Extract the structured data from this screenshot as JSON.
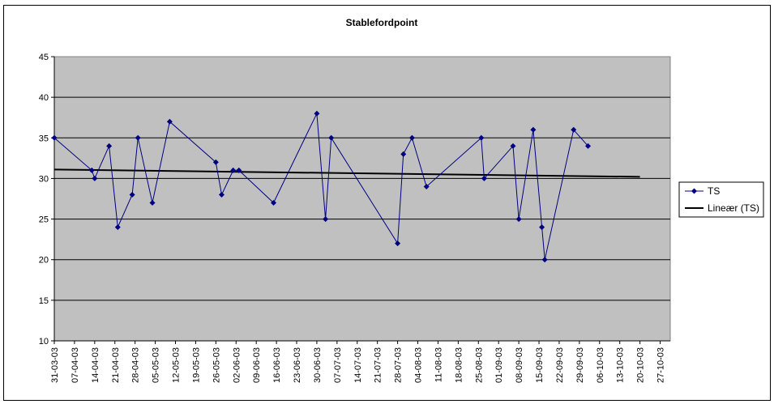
{
  "chart_data": {
    "type": "line",
    "title": "Stablefordpoint",
    "xlabel": "",
    "ylabel": "",
    "ylim": [
      10,
      45
    ],
    "yticks": [
      10,
      15,
      20,
      25,
      30,
      35,
      40,
      45
    ],
    "grid": true,
    "legend_position": "right",
    "colors": {
      "plot_background": "#C0C0C0",
      "series": "#000080",
      "trend": "#000000"
    },
    "x_tick_labels": [
      "31-03-03",
      "07-04-03",
      "14-04-03",
      "21-04-03",
      "28-04-03",
      "05-05-03",
      "12-05-03",
      "19-05-03",
      "26-05-03",
      "02-06-03",
      "09-06-03",
      "16-06-03",
      "23-06-03",
      "30-06-03",
      "07-07-03",
      "14-07-03",
      "21-07-03",
      "28-07-03",
      "04-08-03",
      "11-08-03",
      "18-08-03",
      "25-08-03",
      "01-09-03",
      "08-09-03",
      "15-09-03",
      "22-09-03",
      "29-09-03",
      "06-10-03",
      "13-10-03",
      "20-10-03",
      "27-10-03"
    ],
    "series": [
      {
        "name": "TS",
        "x": [
          "2003-03-31",
          "2003-04-13",
          "2003-04-14",
          "2003-04-19",
          "2003-04-22",
          "2003-04-27",
          "2003-04-29",
          "2003-05-04",
          "2003-05-10",
          "2003-05-26",
          "2003-05-28",
          "2003-06-01",
          "2003-06-03",
          "2003-06-15",
          "2003-06-30",
          "2003-07-03",
          "2003-07-05",
          "2003-07-28",
          "2003-07-30",
          "2003-08-02",
          "2003-08-07",
          "2003-08-26",
          "2003-08-27",
          "2003-09-06",
          "2003-09-08",
          "2003-09-13",
          "2003-09-16",
          "2003-09-17",
          "2003-09-27",
          "2003-10-02"
        ],
        "values": [
          35,
          31,
          30,
          34,
          24,
          28,
          35,
          27,
          37,
          32,
          28,
          31,
          31,
          27,
          38,
          25,
          35,
          22,
          33,
          35,
          29,
          35,
          30,
          34,
          25,
          36,
          24,
          20,
          36,
          34
        ]
      },
      {
        "name": "Lineær (TS)",
        "x": [
          "2003-03-31",
          "2003-10-20"
        ],
        "values": [
          31.1,
          30.2
        ]
      }
    ]
  }
}
